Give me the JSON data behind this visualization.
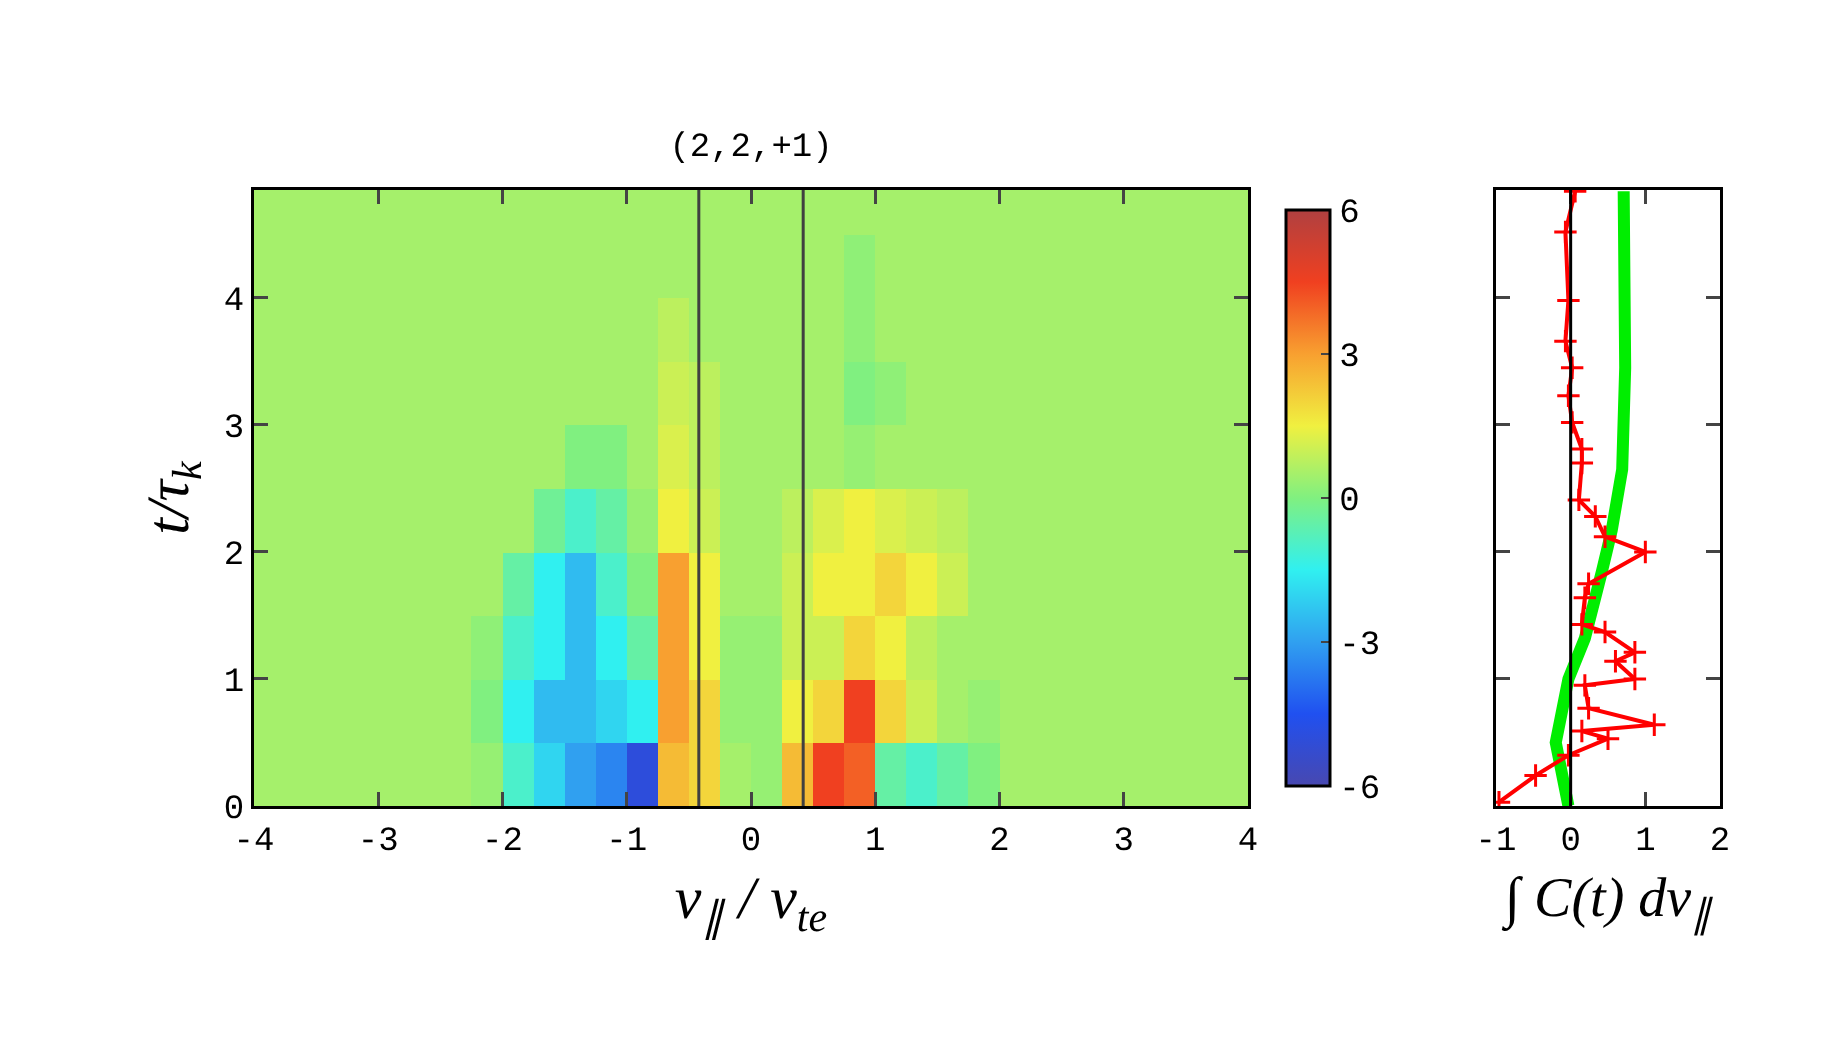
{
  "chart_data": [
    {
      "type": "heatmap",
      "title": "(2,2,+1)",
      "xlabel": "v$_{∥}$ / v$_{te}$",
      "ylabel": "t/τ$_{k}$",
      "x": [
        -3.875,
        -3.625,
        -3.375,
        -3.125,
        -2.875,
        -2.625,
        -2.375,
        -2.125,
        -1.875,
        -1.625,
        -1.375,
        -1.125,
        -0.875,
        -0.625,
        -0.375,
        -0.125,
        0.125,
        0.375,
        0.625,
        0.875,
        1.125,
        1.375,
        1.625,
        1.875,
        2.125,
        2.375,
        2.625,
        2.875,
        3.125,
        3.375,
        3.625,
        3.875
      ],
      "y": [
        0.25,
        0.75,
        1.25,
        1.75,
        2.25,
        2.75,
        3.25,
        3.75,
        4.25,
        4.75
      ],
      "cells": [
        [
          0.5,
          0.5,
          0.5,
          0.5,
          0.5,
          0.5,
          0.5,
          0.3,
          -1,
          -2,
          -3,
          -3.5,
          -5,
          2.5,
          2,
          0.5,
          0.3,
          2.5,
          4.5,
          4,
          -0.5,
          -1,
          -0.5,
          0,
          0.5,
          0.5,
          0.5,
          0.5,
          0.5,
          0.5,
          0.5,
          0.5
        ],
        [
          0.5,
          0.5,
          0.5,
          0.5,
          0.5,
          0.5,
          0.5,
          0,
          -1.5,
          -2.5,
          -2.5,
          -2,
          -1.5,
          3,
          2,
          0.3,
          0.3,
          1.5,
          2,
          4.5,
          2,
          1,
          0.5,
          0.3,
          0.5,
          0.5,
          0.5,
          0.5,
          0.5,
          0.5,
          0.5,
          0.5
        ],
        [
          0.5,
          0.5,
          0.5,
          0.5,
          0.5,
          0.5,
          0.5,
          0.2,
          -1,
          -1.5,
          -2.5,
          -1.5,
          -0.5,
          3,
          1.5,
          0.3,
          0.3,
          1,
          1,
          2,
          1.5,
          0.8,
          0.5,
          0.5,
          0.5,
          0.5,
          0.5,
          0.5,
          0.5,
          0.5,
          0.5,
          0.5
        ],
        [
          0.5,
          0.5,
          0.5,
          0.5,
          0.5,
          0.5,
          0.5,
          0.5,
          -0.5,
          -1.5,
          -2.5,
          -1,
          0,
          3,
          1.5,
          0.5,
          0.5,
          1,
          1.5,
          1.5,
          2,
          1.5,
          1,
          0.5,
          0.5,
          0.5,
          0.5,
          0.5,
          0.5,
          0.5,
          0.5,
          0.5
        ],
        [
          0.5,
          0.5,
          0.5,
          0.5,
          0.5,
          0.5,
          0.5,
          0.5,
          0.5,
          -0.3,
          -1,
          -0.5,
          0.3,
          1.5,
          1,
          0.5,
          0.5,
          0.8,
          1.2,
          1.5,
          1.2,
          1,
          0.8,
          0.5,
          0.5,
          0.5,
          0.5,
          0.5,
          0.5,
          0.5,
          0.5,
          0.5
        ],
        [
          0.5,
          0.5,
          0.5,
          0.5,
          0.5,
          0.5,
          0.5,
          0.5,
          0.5,
          0.5,
          0,
          0,
          0.5,
          1.2,
          0.8,
          0.5,
          0.5,
          0.5,
          0.5,
          0.3,
          0.5,
          0.5,
          0.5,
          0.5,
          0.5,
          0.5,
          0.5,
          0.5,
          0.5,
          0.5,
          0.5,
          0.5
        ],
        [
          0.5,
          0.5,
          0.5,
          0.5,
          0.5,
          0.5,
          0.5,
          0.5,
          0.5,
          0.5,
          0.5,
          0.5,
          0.5,
          1,
          0.8,
          0.5,
          0.5,
          0.5,
          0.5,
          0,
          0.2,
          0.5,
          0.5,
          0.5,
          0.5,
          0.5,
          0.5,
          0.5,
          0.5,
          0.5,
          0.5,
          0.5
        ],
        [
          0.5,
          0.5,
          0.5,
          0.5,
          0.5,
          0.5,
          0.5,
          0.5,
          0.5,
          0.5,
          0.5,
          0.5,
          0.5,
          0.8,
          0.5,
          0.5,
          0.5,
          0.5,
          0.5,
          0.2,
          0.5,
          0.5,
          0.5,
          0.5,
          0.5,
          0.5,
          0.5,
          0.5,
          0.5,
          0.5,
          0.5,
          0.5
        ],
        [
          0.5,
          0.5,
          0.5,
          0.5,
          0.5,
          0.5,
          0.5,
          0.5,
          0.5,
          0.5,
          0.5,
          0.5,
          0.5,
          0.5,
          0.5,
          0.5,
          0.5,
          0.5,
          0.5,
          0.2,
          0.5,
          0.5,
          0.5,
          0.5,
          0.5,
          0.5,
          0.5,
          0.5,
          0.5,
          0.5,
          0.5,
          0.5
        ],
        [
          0.5,
          0.5,
          0.5,
          0.5,
          0.5,
          0.5,
          0.5,
          0.5,
          0.5,
          0.5,
          0.5,
          0.5,
          0.5,
          0.5,
          0.5,
          0.5,
          0.5,
          0.5,
          0.5,
          0.5,
          0.5,
          0.5,
          0.5,
          0.5,
          0.5,
          0.5,
          0.5,
          0.5,
          0.5,
          0.5,
          0.5,
          0.5
        ]
      ],
      "xlim": [
        -4,
        4
      ],
      "xticks": [
        -4,
        -3,
        -2,
        -1,
        0,
        1,
        2,
        3,
        4
      ],
      "ylim": [
        0,
        4.85
      ],
      "yticks": [
        0,
        1,
        2,
        3,
        4
      ],
      "clim": [
        -6,
        6
      ],
      "cticks": [
        -6,
        -3,
        0,
        3,
        6
      ],
      "ref_lines": [
        {
          "axis": "x",
          "value": -0.42,
          "color": "#404040"
        },
        {
          "axis": "x",
          "value": 0.42,
          "color": "#404040"
        }
      ]
    },
    {
      "type": "line",
      "xlabel": "∫ C(t) dv$_{∥}$",
      "xlim": [
        -1,
        2
      ],
      "xticks": [
        -1,
        0,
        1,
        2
      ],
      "ylim": [
        0,
        4.85
      ],
      "yticks": [
        0,
        1,
        2,
        3,
        4
      ],
      "tick_labels": "x",
      "ref_lines": [
        {
          "axis": "x",
          "value": 0,
          "color": "#000000"
        }
      ],
      "series": [
        {
          "color": "#ff0000",
          "marker": "cross",
          "x": [
            -0.96,
            -0.47,
            -0.03,
            0.5,
            0.15,
            1.12,
            0.24,
            0.19,
            0.86,
            0.6,
            0.86,
            0.46,
            0.15,
            0.19,
            0.24,
            1.0,
            0.46,
            0.33,
            0.11,
            0.15,
            0.15,
            0.02,
            -0.03,
            0.02,
            -0.07,
            -0.03,
            -0.07,
            0.06
          ],
          "values": [
            0.03,
            0.24,
            0.4,
            0.53,
            0.59,
            0.64,
            0.77,
            0.95,
            1.0,
            1.14,
            1.21,
            1.37,
            1.43,
            1.64,
            1.75,
            2.0,
            2.12,
            2.28,
            2.41,
            2.7,
            2.81,
            3.02,
            3.23,
            3.45,
            3.66,
            3.98,
            4.52,
            4.84
          ]
        },
        {
          "color": "#00ee00",
          "marker": "none",
          "x": [
            -0.03,
            -0.2,
            -0.03,
            0.19,
            0.42,
            0.55,
            0.69,
            0.73,
            0.71
          ],
          "values": [
            0,
            0.5,
            1.0,
            1.32,
            1.85,
            2.17,
            2.65,
            3.45,
            4.84
          ]
        }
      ]
    }
  ]
}
